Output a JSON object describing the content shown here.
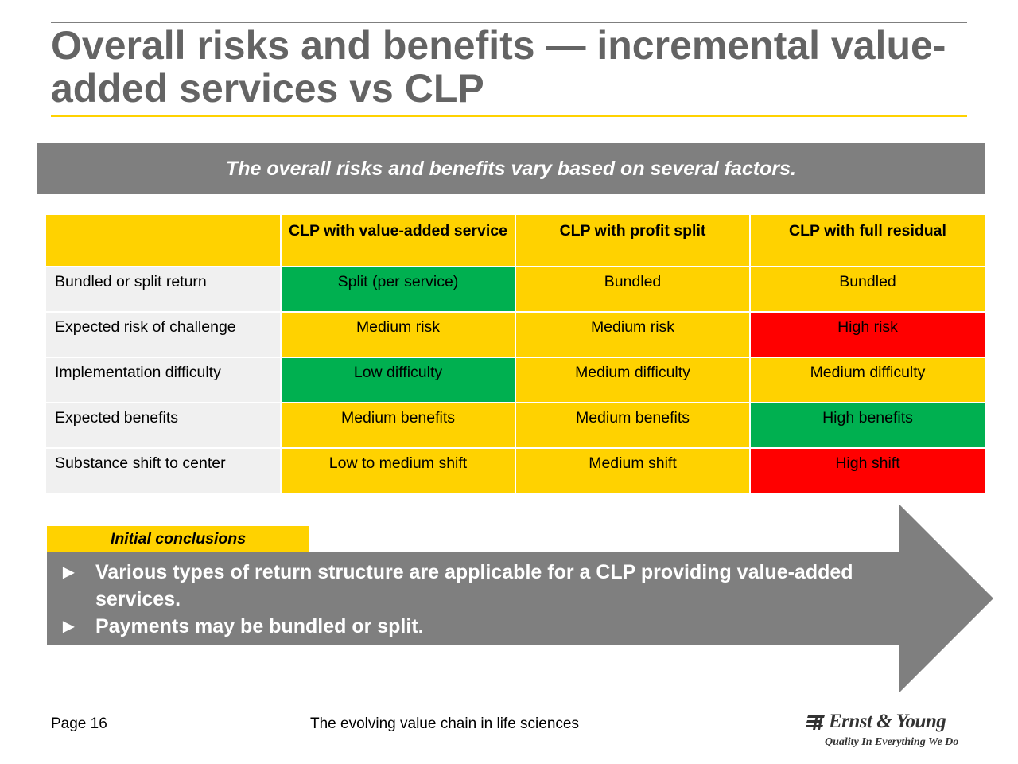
{
  "title": "Overall risks and benefits — incremental value-added services vs CLP",
  "banner": "The overall risks and benefits vary based on several factors.",
  "table": {
    "headers": [
      "",
      "CLP with value-added service",
      "CLP with profit split",
      "CLP with full residual"
    ],
    "rows": [
      {
        "label": "Bundled or split return",
        "cells": [
          {
            "text": "Split (per service)",
            "status": "green"
          },
          {
            "text": "Bundled",
            "status": "yellow"
          },
          {
            "text": "Bundled",
            "status": "yellow"
          }
        ]
      },
      {
        "label": "Expected risk of challenge",
        "cells": [
          {
            "text": "Medium risk",
            "status": "yellow"
          },
          {
            "text": "Medium risk",
            "status": "yellow"
          },
          {
            "text": "High risk",
            "status": "red"
          }
        ]
      },
      {
        "label": "Implementation difficulty",
        "cells": [
          {
            "text": "Low difficulty",
            "status": "green"
          },
          {
            "text": "Medium difficulty",
            "status": "yellow"
          },
          {
            "text": "Medium difficulty",
            "status": "yellow"
          }
        ]
      },
      {
        "label": "Expected benefits",
        "cells": [
          {
            "text": "Medium benefits",
            "status": "yellow"
          },
          {
            "text": "Medium benefits",
            "status": "yellow"
          },
          {
            "text": "High benefits",
            "status": "green"
          }
        ]
      },
      {
        "label": "Substance shift to center",
        "cells": [
          {
            "text": "Low to medium shift",
            "status": "yellow"
          },
          {
            "text": "Medium shift",
            "status": "yellow"
          },
          {
            "text": "High shift",
            "status": "red"
          }
        ]
      }
    ]
  },
  "conclusions": {
    "label": "Initial conclusions",
    "bullet_glyph": "►",
    "items": [
      "Various types of return structure are applicable for a CLP providing value-added services.",
      "Payments may be bundled or split."
    ]
  },
  "footer": {
    "page": "Page 16",
    "title": "The evolving value chain in life sciences"
  },
  "logo": {
    "name": "Ernst & Young",
    "tagline": "Quality In Everything We Do"
  },
  "colors": {
    "accent_yellow": "#ffd200",
    "gray": "#7f7f7f",
    "green": "#00b050",
    "red": "#ff0000",
    "title_gray": "#646464"
  }
}
